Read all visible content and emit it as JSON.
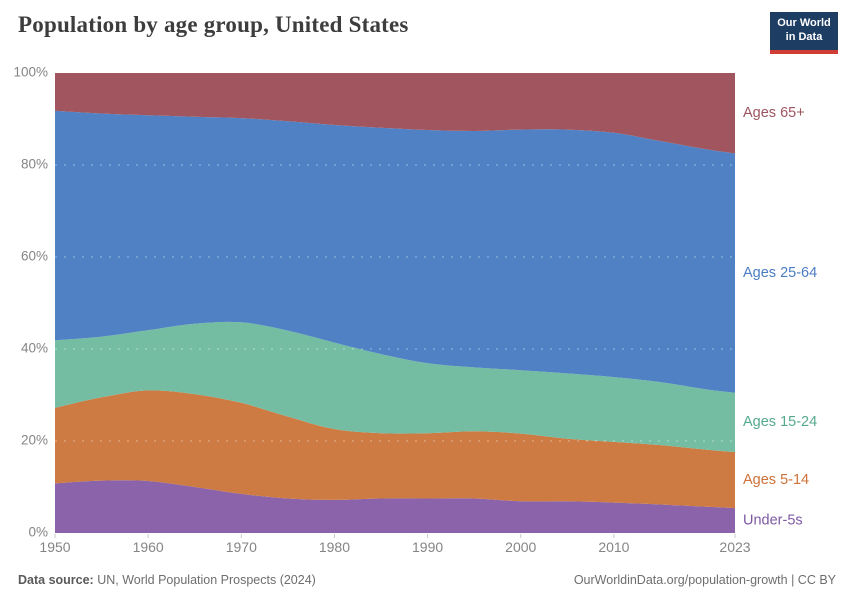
{
  "header": {
    "title": "Population by age group, United States",
    "logo": {
      "line1": "Our World",
      "line2": "in Data",
      "bg_color": "#1d3d63",
      "accent_color": "#cf3d34"
    }
  },
  "chart_data": {
    "type": "area",
    "stacked": true,
    "title": "Population by age group, United States",
    "xlabel": "",
    "ylabel": "",
    "unit": "%",
    "ylim": [
      0,
      100
    ],
    "grid": true,
    "legend_position": "right",
    "x": [
      1950,
      1955,
      1960,
      1965,
      1970,
      1975,
      1980,
      1985,
      1990,
      1995,
      2000,
      2005,
      2010,
      2015,
      2020,
      2023
    ],
    "xticks": [
      1950,
      1960,
      1970,
      1980,
      1990,
      2000,
      2010,
      2023
    ],
    "yticks": [
      0,
      20,
      40,
      60,
      80,
      100
    ],
    "ytick_labels": [
      "0%",
      "20%",
      "40%",
      "60%",
      "80%",
      "100%"
    ],
    "series": [
      {
        "name": "Under-5s",
        "color": "#8a63aa",
        "label_color": "#7e58a4",
        "values": [
          10.8,
          11.4,
          11.3,
          10.0,
          8.5,
          7.5,
          7.2,
          7.5,
          7.5,
          7.5,
          6.9,
          6.9,
          6.6,
          6.2,
          5.7,
          5.4
        ]
      },
      {
        "name": "Ages 5-14",
        "color": "#cd7b42",
        "label_color": "#cf7138",
        "values": [
          16.4,
          18.1,
          19.7,
          20.2,
          19.8,
          17.8,
          15.4,
          14.2,
          14.2,
          14.6,
          14.7,
          13.6,
          13.2,
          12.9,
          12.4,
          12.2
        ]
      },
      {
        "name": "Ages 15-24",
        "color": "#74bda3",
        "label_color": "#56a88e",
        "values": [
          14.7,
          13.2,
          13.1,
          15.3,
          17.5,
          18.7,
          18.8,
          17.2,
          15.2,
          13.9,
          13.8,
          14.2,
          14.1,
          13.7,
          13.1,
          12.9
        ]
      },
      {
        "name": "Ages 25-64",
        "color": "#4f81c4",
        "label_color": "#4a7dc4",
        "values": [
          49.9,
          48.5,
          46.7,
          45.0,
          44.4,
          45.5,
          47.3,
          49.2,
          50.7,
          51.4,
          52.3,
          53.0,
          53.1,
          52.4,
          52.2,
          52.0
        ]
      },
      {
        "name": "Ages 65+",
        "color": "#a1565f",
        "label_color": "#9d5460",
        "values": [
          8.2,
          8.8,
          9.2,
          9.5,
          9.8,
          10.5,
          11.3,
          11.9,
          12.4,
          12.6,
          12.3,
          12.3,
          13.0,
          14.8,
          16.6,
          17.5
        ]
      }
    ],
    "axis_text_color": "#858585",
    "gridline_color": "rgba(255,255,255,0.45)",
    "tick_color": "#c8c8c8"
  },
  "footer": {
    "source_label": "Data source:",
    "source_text": " UN, World Population Prospects (2024)",
    "credit": "OurWorldinData.org/population-growth | CC BY"
  }
}
